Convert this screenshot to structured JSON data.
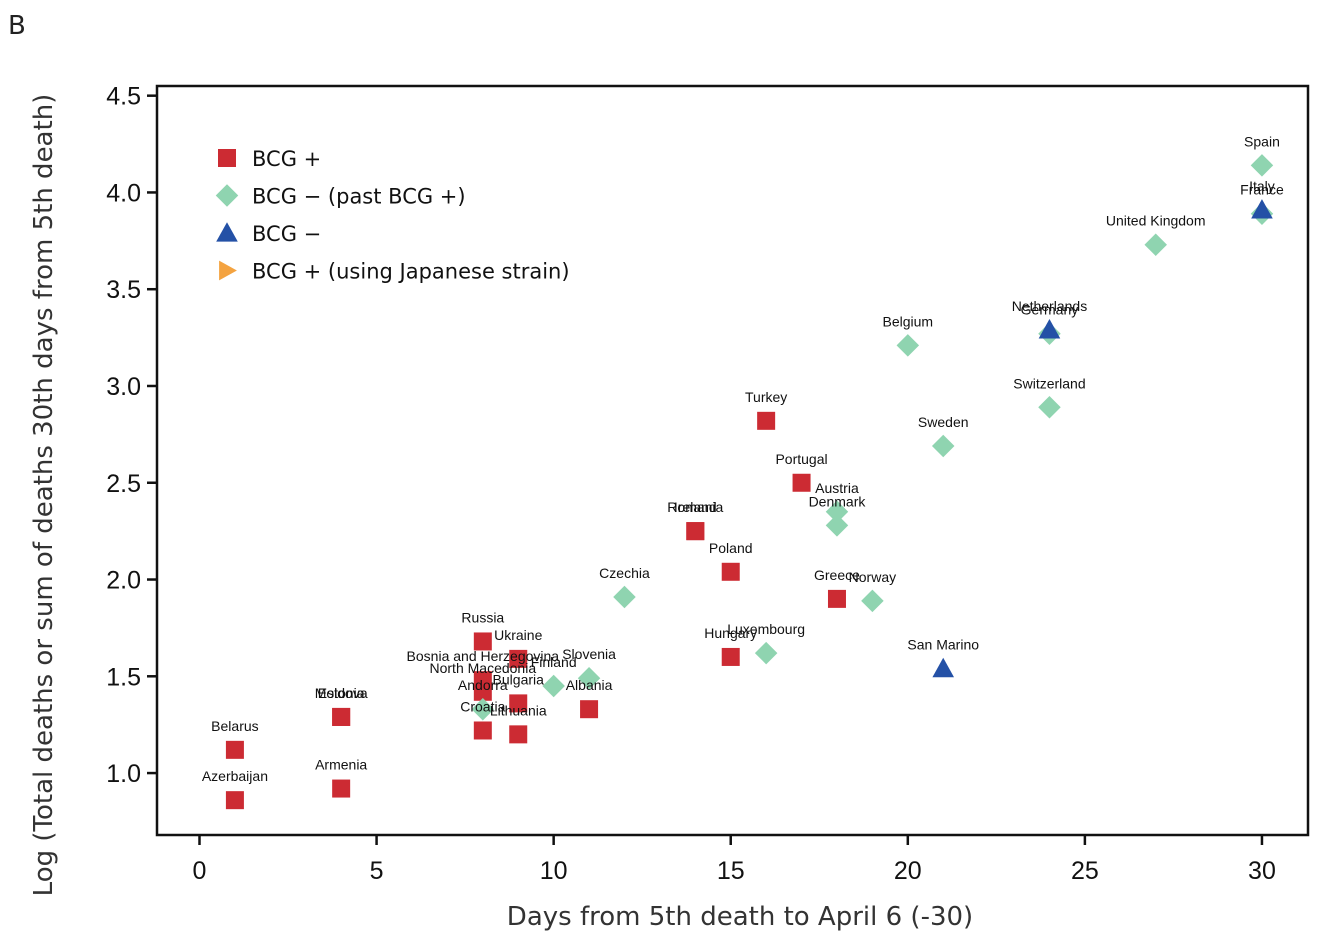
{
  "panel_label": "B",
  "chart_data": {
    "type": "scatter",
    "xlabel": "Days from 5th death to April 6 (-30)",
    "ylabel": "Log (Total deaths or sum of deaths 30th days from 5th death)",
    "xlim": [
      -1.2,
      31.3
    ],
    "ylim": [
      0.68,
      4.55
    ],
    "x_ticks": [
      0,
      5,
      10,
      15,
      20,
      25,
      30
    ],
    "x_tick_labels": [
      "0",
      "5",
      "10",
      "15",
      "20",
      "25",
      "30"
    ],
    "y_ticks": [
      1.0,
      1.5,
      2.0,
      2.5,
      3.0,
      3.5,
      4.0,
      4.5
    ],
    "y_tick_labels": [
      "1.0",
      "1.5",
      "2.0",
      "2.5",
      "3.0",
      "3.5",
      "4.0",
      "4.5"
    ],
    "grid": false,
    "legend_position": "top-left",
    "series": [
      {
        "name": "BCG +",
        "marker": "square",
        "color": "#cc2b33",
        "points": [
          {
            "label": "Belarus",
            "x": 1,
            "y": 1.12
          },
          {
            "label": "Azerbaijan",
            "x": 1,
            "y": 0.86
          },
          {
            "label": "Estonia",
            "x": 4,
            "y": 1.29
          },
          {
            "label": "Moldova",
            "x": 4,
            "y": 1.29
          },
          {
            "label": "Armenia",
            "x": 4,
            "y": 0.92
          },
          {
            "label": "Russia",
            "x": 8,
            "y": 1.68
          },
          {
            "label": "Bosnia and Herzegovina",
            "x": 8,
            "y": 1.48
          },
          {
            "label": "North Macedonia",
            "x": 8,
            "y": 1.42
          },
          {
            "label": "Croatia",
            "x": 8,
            "y": 1.22
          },
          {
            "label": "Ukraine",
            "x": 9,
            "y": 1.59
          },
          {
            "label": "Bulgaria",
            "x": 9,
            "y": 1.36
          },
          {
            "label": "Lithuania",
            "x": 9,
            "y": 1.2
          },
          {
            "label": "Albania",
            "x": 11,
            "y": 1.33
          },
          {
            "label": "Romania",
            "x": 14,
            "y": 2.25
          },
          {
            "label": "Ireland",
            "x": 14,
            "y": 2.25
          },
          {
            "label": "Poland",
            "x": 15,
            "y": 2.04
          },
          {
            "label": "Hungary",
            "x": 15,
            "y": 1.6
          },
          {
            "label": "Turkey",
            "x": 16,
            "y": 2.82
          },
          {
            "label": "Portugal",
            "x": 17,
            "y": 2.5
          },
          {
            "label": "Greece",
            "x": 18,
            "y": 1.9
          }
        ]
      },
      {
        "name": "BCG − (past BCG +)",
        "marker": "diamond",
        "color": "#8fd4b0",
        "points": [
          {
            "label": "Andorra",
            "x": 8,
            "y": 1.33
          },
          {
            "label": "Finland",
            "x": 10,
            "y": 1.45
          },
          {
            "label": "Slovenia",
            "x": 11,
            "y": 1.49
          },
          {
            "label": "Czechia",
            "x": 12,
            "y": 1.91
          },
          {
            "label": "Luxembourg",
            "x": 16,
            "y": 1.62
          },
          {
            "label": "Austria",
            "x": 18,
            "y": 2.35
          },
          {
            "label": "Denmark",
            "x": 18,
            "y": 2.28
          },
          {
            "label": "Norway",
            "x": 19,
            "y": 1.89
          },
          {
            "label": "Belgium",
            "x": 20,
            "y": 3.21
          },
          {
            "label": "Sweden",
            "x": 21,
            "y": 2.69
          },
          {
            "label": "Switzerland",
            "x": 24,
            "y": 2.89
          },
          {
            "label": "Germany",
            "x": 24,
            "y": 3.27
          },
          {
            "label": "United Kingdom",
            "x": 27,
            "y": 3.73
          },
          {
            "label": "Spain",
            "x": 30,
            "y": 4.14
          },
          {
            "label": "France",
            "x": 30,
            "y": 3.89
          }
        ]
      },
      {
        "name": "BCG −",
        "marker": "triangle-up",
        "color": "#2451a6",
        "points": [
          {
            "label": "San Marino",
            "x": 21,
            "y": 1.54
          },
          {
            "label": "Netherlands",
            "x": 24,
            "y": 3.29
          },
          {
            "label": "Italy",
            "x": 30,
            "y": 3.91
          }
        ]
      },
      {
        "name": "BCG + (using Japanese strain)",
        "marker": "triangle-right",
        "color": "#f4a340",
        "points": []
      }
    ]
  }
}
